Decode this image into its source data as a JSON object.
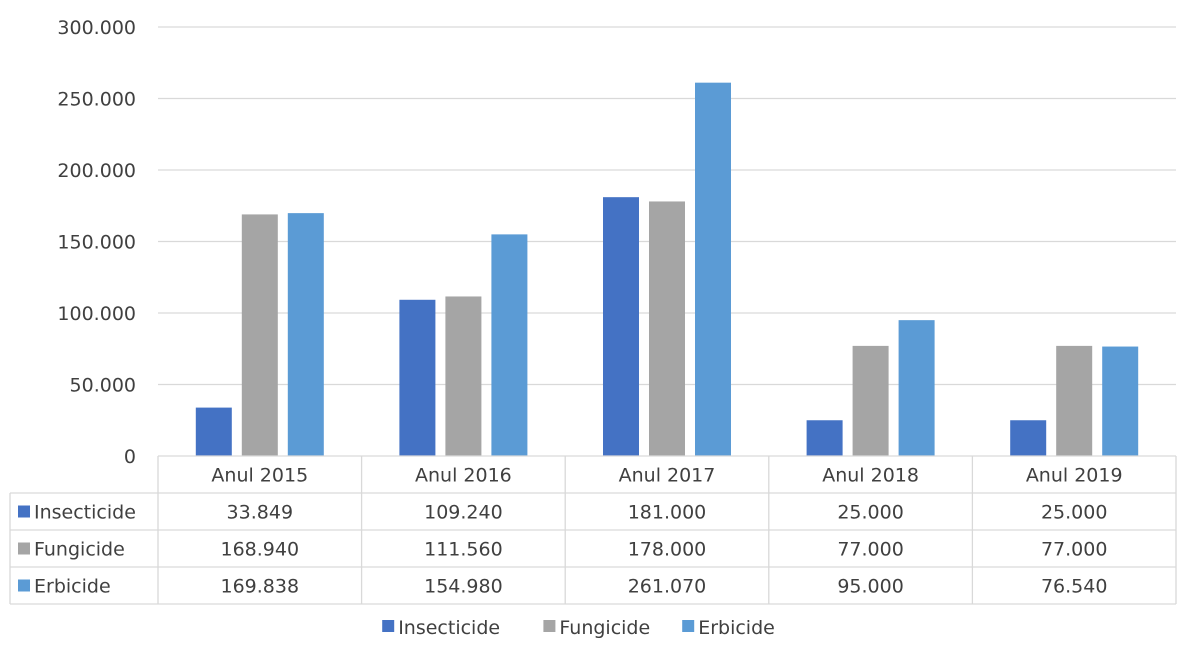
{
  "chart_data": {
    "type": "bar",
    "categories": [
      "Anul 2015",
      "Anul 2016",
      "Anul 2017",
      "Anul 2018",
      "Anul 2019"
    ],
    "series": [
      {
        "name": "Insecticide",
        "color": "#4472C4",
        "values": [
          33849,
          109240,
          181000,
          25000,
          25000
        ],
        "labels": [
          "33.849",
          "109.240",
          "181.000",
          "25.000",
          "25.000"
        ]
      },
      {
        "name": "Fungicide",
        "color": "#A5A5A5",
        "values": [
          168940,
          111560,
          178000,
          77000,
          77000
        ],
        "labels": [
          "168.940",
          "111.560",
          "178.000",
          "77.000",
          "77.000"
        ]
      },
      {
        "name": "Erbicide",
        "color": "#5B9BD5",
        "values": [
          169838,
          154980,
          261070,
          95000,
          76540
        ],
        "labels": [
          "169.838",
          "154.980",
          "261.070",
          "95.000",
          "76.540"
        ]
      }
    ],
    "ylim": [
      0,
      300000
    ],
    "yticks": [
      {
        "value": 0,
        "label": "0"
      },
      {
        "value": 50000,
        "label": "50.000"
      },
      {
        "value": 100000,
        "label": "100.000"
      },
      {
        "value": 150000,
        "label": "150.000"
      },
      {
        "value": 200000,
        "label": "200.000"
      },
      {
        "value": 250000,
        "label": "250.000"
      },
      {
        "value": 300000,
        "label": "300.000"
      }
    ],
    "grid": true,
    "legend": "bottom",
    "data_table": true
  }
}
